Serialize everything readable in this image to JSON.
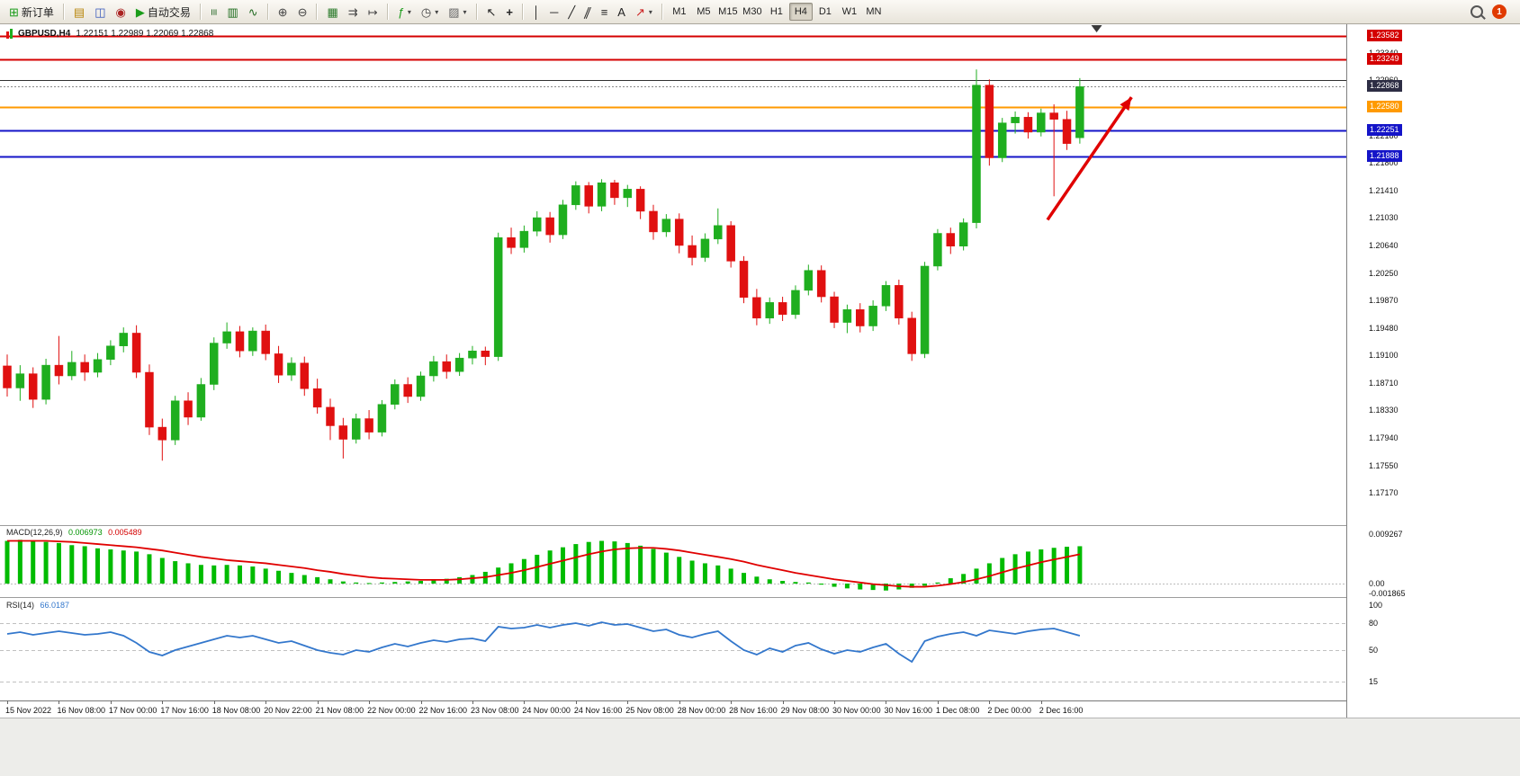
{
  "toolbar": {
    "new_order_label": "新订单",
    "auto_trading_label": "自动交易",
    "timeframes": [
      "M1",
      "M5",
      "M15",
      "M30",
      "H1",
      "H4",
      "D1",
      "W1",
      "MN"
    ],
    "active_timeframe": "H4",
    "notification_badge": "1"
  },
  "chart": {
    "symbol_period": "GBPUSD,H4",
    "ohlc_text": "1.22151 1.22989 1.22069 1.22868"
  },
  "chart_data": {
    "type": "candlestick",
    "symbol": "GBPUSD",
    "timeframe": "H4",
    "current_bar": {
      "open": 1.22151,
      "high": 1.22989,
      "low": 1.22069,
      "close": 1.22868
    },
    "colors": {
      "bull": "#1fae1f",
      "bear": "#e01010",
      "macd_hist": "#00bb00",
      "macd_signal": "#e00000",
      "rsi_line": "#3377cc",
      "arrow": "#e00000",
      "line_red": "#d40000",
      "line_blue": "#1414c8",
      "line_orange": "#ff9a00",
      "line_black": "#303030"
    },
    "y_ticks": [
      "1.23340",
      "1.22960",
      "1.22570",
      "1.22180",
      "1.21800",
      "1.21410",
      "1.21030",
      "1.20640",
      "1.20250",
      "1.19870",
      "1.19480",
      "1.19100",
      "1.18710",
      "1.18330",
      "1.17940",
      "1.17550",
      "1.17170"
    ],
    "x_labels": [
      "15 Nov 2022",
      "16 Nov 08:00",
      "17 Nov 00:00",
      "17 Nov 16:00",
      "18 Nov 08:00",
      "20 Nov 22:00",
      "21 Nov 08:00",
      "22 Nov 00:00",
      "22 Nov 16:00",
      "23 Nov 08:00",
      "24 Nov 00:00",
      "24 Nov 16:00",
      "25 Nov 08:00",
      "28 Nov 00:00",
      "28 Nov 16:00",
      "29 Nov 08:00",
      "30 Nov 00:00",
      "30 Nov 16:00",
      "1 Dec 08:00",
      "2 Dec 00:00",
      "2 Dec 16:00"
    ],
    "x_label_step": 4,
    "price_lines": [
      {
        "price": 1.23582,
        "color": "#d40000",
        "w": 2,
        "label": "1.23582",
        "badge": "#d40000",
        "style": "solid"
      },
      {
        "price": 1.23249,
        "color": "#d40000",
        "w": 2,
        "label": "1.23249",
        "badge": "#d40000",
        "style": "solid"
      },
      {
        "price": 1.2296,
        "color": "#303030",
        "w": 1,
        "label": null,
        "badge": null,
        "style": "solid"
      },
      {
        "price": 1.22868,
        "color": "#888888",
        "w": 1,
        "label": "1.22868",
        "badge": "#2d2d44",
        "style": "current"
      },
      {
        "price": 1.2258,
        "color": "#ff9a00",
        "w": 2,
        "label": "1.22580",
        "badge": "#ff9a00",
        "style": "solid"
      },
      {
        "price": 1.22251,
        "color": "#1414c8",
        "w": 2,
        "label": "1.22251",
        "badge": "#1414c8",
        "style": "solid"
      },
      {
        "price": 1.21888,
        "color": "#1414c8",
        "w": 2,
        "label": "1.21888",
        "badge": "#1414c8",
        "style": "solid"
      }
    ],
    "candles": [
      [
        1.1895,
        1.1911,
        1.1852,
        1.1864
      ],
      [
        1.1864,
        1.1896,
        1.1846,
        1.1884
      ],
      [
        1.1884,
        1.1893,
        1.1836,
        1.1848
      ],
      [
        1.1848,
        1.1905,
        1.1841,
        1.1896
      ],
      [
        1.1896,
        1.1937,
        1.1869,
        1.1881
      ],
      [
        1.1881,
        1.1916,
        1.1875,
        1.19
      ],
      [
        1.19,
        1.1911,
        1.1874,
        1.1886
      ],
      [
        1.1886,
        1.1913,
        1.1879,
        1.1904
      ],
      [
        1.1904,
        1.1931,
        1.1896,
        1.1923
      ],
      [
        1.1923,
        1.1949,
        1.1914,
        1.1941
      ],
      [
        1.1941,
        1.1952,
        1.1878,
        1.1886
      ],
      [
        1.1886,
        1.1897,
        1.1798,
        1.1809
      ],
      [
        1.1809,
        1.1821,
        1.1762,
        1.1791
      ],
      [
        1.1791,
        1.1853,
        1.1784,
        1.1846
      ],
      [
        1.1846,
        1.1858,
        1.1812,
        1.1823
      ],
      [
        1.1823,
        1.1878,
        1.1818,
        1.1869
      ],
      [
        1.1869,
        1.1935,
        1.1861,
        1.1927
      ],
      [
        1.1927,
        1.1956,
        1.1919,
        1.1943
      ],
      [
        1.1943,
        1.1951,
        1.1907,
        1.1916
      ],
      [
        1.1916,
        1.1949,
        1.1909,
        1.1944
      ],
      [
        1.1944,
        1.1953,
        1.1903,
        1.1912
      ],
      [
        1.1912,
        1.1923,
        1.1871,
        1.1882
      ],
      [
        1.1882,
        1.1907,
        1.1874,
        1.1899
      ],
      [
        1.1899,
        1.1908,
        1.1853,
        1.1863
      ],
      [
        1.1863,
        1.1877,
        1.1828,
        1.1837
      ],
      [
        1.1837,
        1.1849,
        1.1791,
        1.1811
      ],
      [
        1.1811,
        1.1822,
        1.1765,
        1.1792
      ],
      [
        1.1792,
        1.1828,
        1.1786,
        1.1821
      ],
      [
        1.1821,
        1.1833,
        1.1792,
        1.1802
      ],
      [
        1.1802,
        1.1847,
        1.1796,
        1.1841
      ],
      [
        1.1841,
        1.1876,
        1.1834,
        1.1869
      ],
      [
        1.1869,
        1.1879,
        1.1843,
        1.1852
      ],
      [
        1.1852,
        1.1887,
        1.1846,
        1.1881
      ],
      [
        1.1881,
        1.1909,
        1.1873,
        1.1901
      ],
      [
        1.1901,
        1.1911,
        1.1877,
        1.1887
      ],
      [
        1.1887,
        1.1913,
        1.1881,
        1.1906
      ],
      [
        1.1906,
        1.1923,
        1.1897,
        1.1916
      ],
      [
        1.1916,
        1.1922,
        1.1896,
        1.1908
      ],
      [
        1.1908,
        1.2082,
        1.1902,
        1.2075
      ],
      [
        1.2075,
        1.2089,
        1.2052,
        1.2061
      ],
      [
        1.2061,
        1.2092,
        1.2054,
        1.2084
      ],
      [
        1.2084,
        1.2112,
        1.2077,
        1.2103
      ],
      [
        1.2103,
        1.2111,
        1.2068,
        1.2079
      ],
      [
        1.2079,
        1.2128,
        1.2073,
        1.2121
      ],
      [
        1.2121,
        1.2154,
        1.2114,
        1.2148
      ],
      [
        1.2148,
        1.2153,
        1.2109,
        1.2119
      ],
      [
        1.2119,
        1.2157,
        1.2112,
        1.2152
      ],
      [
        1.2152,
        1.2156,
        1.2121,
        1.2131
      ],
      [
        1.2131,
        1.2149,
        1.2118,
        1.2143
      ],
      [
        1.2143,
        1.2147,
        1.2101,
        1.2112
      ],
      [
        1.2112,
        1.2121,
        1.2072,
        1.2083
      ],
      [
        1.2083,
        1.2108,
        1.2076,
        1.2101
      ],
      [
        1.2101,
        1.2109,
        1.2053,
        1.2064
      ],
      [
        1.2064,
        1.2078,
        1.2036,
        1.2047
      ],
      [
        1.2047,
        1.2081,
        1.2041,
        1.2073
      ],
      [
        1.2073,
        1.2116,
        1.2066,
        1.2092
      ],
      [
        1.2092,
        1.2098,
        1.2033,
        1.2042
      ],
      [
        1.2042,
        1.2049,
        1.1983,
        1.1991
      ],
      [
        1.1991,
        1.2003,
        1.1952,
        1.1962
      ],
      [
        1.1962,
        1.1991,
        1.1954,
        1.1984
      ],
      [
        1.1984,
        1.1992,
        1.1958,
        1.1967
      ],
      [
        1.1967,
        1.2008,
        1.1961,
        1.2001
      ],
      [
        1.2001,
        1.2037,
        1.1994,
        1.2029
      ],
      [
        1.2029,
        1.2036,
        1.1984,
        1.1992
      ],
      [
        1.1992,
        1.1999,
        1.1948,
        1.1956
      ],
      [
        1.1956,
        1.1981,
        1.1941,
        1.1974
      ],
      [
        1.1974,
        1.1983,
        1.1942,
        1.1951
      ],
      [
        1.1951,
        1.1987,
        1.1944,
        1.1979
      ],
      [
        1.1979,
        1.2014,
        1.1972,
        1.2008
      ],
      [
        1.2008,
        1.2016,
        1.1953,
        1.1962
      ],
      [
        1.1962,
        1.1971,
        1.1902,
        1.1912
      ],
      [
        1.1912,
        1.2041,
        1.1906,
        1.2035
      ],
      [
        1.2035,
        1.2087,
        1.2029,
        1.2081
      ],
      [
        1.2081,
        1.2089,
        1.2052,
        1.2063
      ],
      [
        1.2063,
        1.2102,
        1.2057,
        1.2096
      ],
      [
        1.2096,
        1.2311,
        1.2088,
        1.2289
      ],
      [
        1.2289,
        1.2297,
        1.2176,
        1.2187
      ],
      [
        1.2187,
        1.2243,
        1.2181,
        1.2236
      ],
      [
        1.2236,
        1.2252,
        1.2221,
        1.2244
      ],
      [
        1.2244,
        1.2251,
        1.2214,
        1.2223
      ],
      [
        1.2223,
        1.2256,
        1.2217,
        1.225
      ],
      [
        1.225,
        1.2262,
        1.2133,
        1.2241
      ],
      [
        1.2241,
        1.2253,
        1.2198,
        1.2207
      ],
      [
        1.22151,
        1.22989,
        1.22069,
        1.22868
      ]
    ],
    "macd": {
      "name": "MACD(12,26,9)",
      "main_value": "0.006973",
      "signal_value": "0.005489",
      "axis": [
        "0.009267",
        "0.00",
        "-0.001865"
      ],
      "histogram": [
        0.008,
        0.0082,
        0.0081,
        0.0078,
        0.0076,
        0.0072,
        0.007,
        0.0066,
        0.0064,
        0.0062,
        0.006,
        0.0055,
        0.0048,
        0.0042,
        0.0038,
        0.0035,
        0.0034,
        0.0035,
        0.0034,
        0.0032,
        0.0028,
        0.0024,
        0.002,
        0.0016,
        0.0012,
        0.0008,
        0.0004,
        0.0002,
        0.0001,
        0.0002,
        0.0003,
        0.0004,
        0.0005,
        0.0007,
        0.0009,
        0.0012,
        0.0016,
        0.0022,
        0.003,
        0.0038,
        0.0046,
        0.0054,
        0.0062,
        0.0068,
        0.0074,
        0.0078,
        0.008,
        0.0079,
        0.0076,
        0.0071,
        0.0065,
        0.0058,
        0.005,
        0.0043,
        0.0038,
        0.0034,
        0.0028,
        0.002,
        0.0013,
        0.0008,
        0.0005,
        0.0003,
        0.0002,
        -0.0002,
        -0.0006,
        -0.0009,
        -0.0011,
        -0.0012,
        -0.0013,
        -0.0011,
        -0.0008,
        -0.0004,
        0.0002,
        0.001,
        0.0018,
        0.0028,
        0.0038,
        0.0048,
        0.0055,
        0.006,
        0.0064,
        0.0067,
        0.0069,
        0.007
      ],
      "signal": [
        0.008,
        0.008,
        0.008,
        0.008,
        0.0079,
        0.0078,
        0.0076,
        0.0074,
        0.0072,
        0.007,
        0.0068,
        0.0065,
        0.0062,
        0.0058,
        0.0054,
        0.005,
        0.0047,
        0.0044,
        0.0042,
        0.004,
        0.0038,
        0.0035,
        0.0032,
        0.0029,
        0.0025,
        0.0022,
        0.0018,
        0.0015,
        0.0012,
        0.001,
        0.0009,
        0.0008,
        0.0007,
        0.0007,
        0.0007,
        0.0008,
        0.001,
        0.0012,
        0.0016,
        0.002,
        0.0025,
        0.0031,
        0.0037,
        0.0043,
        0.0049,
        0.0055,
        0.006,
        0.0064,
        0.0066,
        0.0067,
        0.0067,
        0.0065,
        0.0062,
        0.0058,
        0.0054,
        0.005,
        0.0046,
        0.0041,
        0.0035,
        0.003,
        0.0025,
        0.002,
        0.0016,
        0.0012,
        0.0008,
        0.0005,
        0.0002,
        -0.0001,
        -0.0003,
        -0.0005,
        -0.0006,
        -0.0006,
        -0.0004,
        -0.0001,
        0.0003,
        0.0008,
        0.0014,
        0.0021,
        0.0028,
        0.0034,
        0.004,
        0.0045,
        0.005,
        0.0055
      ]
    },
    "rsi": {
      "name": "RSI(14)",
      "value": "66.0187",
      "axis": [
        "100",
        "80",
        "50",
        "15"
      ],
      "levels": [
        80,
        50,
        15
      ],
      "values": [
        68,
        70,
        67,
        69,
        71,
        69,
        67,
        68,
        70,
        66,
        58,
        48,
        44,
        50,
        54,
        58,
        62,
        66,
        64,
        66,
        62,
        58,
        60,
        55,
        50,
        47,
        45,
        50,
        48,
        53,
        57,
        54,
        58,
        61,
        59,
        62,
        63,
        60,
        76,
        74,
        75,
        78,
        75,
        78,
        80,
        77,
        81,
        78,
        79,
        75,
        71,
        73,
        67,
        64,
        68,
        71,
        60,
        50,
        45,
        52,
        48,
        55,
        58,
        51,
        46,
        50,
        48,
        53,
        57,
        46,
        37,
        60,
        65,
        68,
        70,
        66,
        72,
        70,
        68,
        71,
        73,
        74,
        70,
        66.0187
      ]
    },
    "arrow": {
      "from_bar": 80.5,
      "from_price": 1.21,
      "to_bar": 87,
      "to_price": 1.2272
    },
    "shift_marker_bar": 84.3
  }
}
